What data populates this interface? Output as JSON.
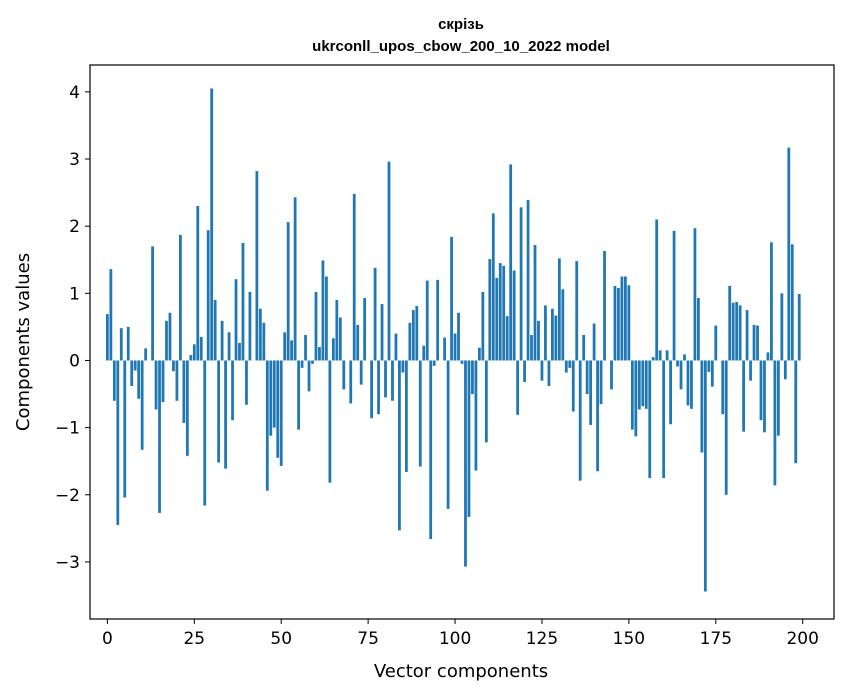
{
  "chart_data": {
    "type": "bar",
    "title": "скрізь",
    "subtitle": "ukrconll_upos_cbow_200_10_2022 model",
    "xlabel": "Vector components",
    "ylabel": "Components values",
    "xlim": [
      -5,
      209
    ],
    "ylim": [
      -3.85,
      4.4
    ],
    "xticks": [
      0,
      25,
      50,
      75,
      100,
      125,
      150,
      175,
      200
    ],
    "yticks": [
      -3,
      -2,
      -1,
      0,
      1,
      2,
      3,
      4
    ],
    "xtick_labels": [
      "0",
      "25",
      "50",
      "75",
      "100",
      "125",
      "150",
      "175",
      "200"
    ],
    "ytick_labels": [
      "−3",
      "−2",
      "−1",
      "0",
      "1",
      "2",
      "3",
      "4"
    ],
    "bar_color": "#1f77b4",
    "grid": false,
    "values": [
      0.69,
      1.36,
      -0.6,
      -2.45,
      0.48,
      -2.04,
      0.5,
      -0.38,
      -0.15,
      -0.57,
      -1.33,
      0.18,
      0.0,
      1.7,
      -0.73,
      -2.27,
      -0.62,
      0.59,
      0.71,
      -0.16,
      -0.6,
      1.87,
      -0.93,
      -1.42,
      0.08,
      0.24,
      2.3,
      0.35,
      -2.16,
      1.94,
      4.05,
      0.9,
      -1.52,
      0.59,
      -1.61,
      0.42,
      -0.89,
      1.21,
      0.26,
      1.75,
      -0.66,
      1.02,
      0.0,
      2.82,
      0.77,
      0.56,
      -1.94,
      -1.12,
      -1.0,
      -1.45,
      -1.57,
      0.42,
      2.06,
      0.3,
      2.43,
      -1.03,
      -0.11,
      0.38,
      -0.46,
      -0.05,
      1.02,
      0.2,
      1.49,
      1.25,
      -1.82,
      0.33,
      0.9,
      0.64,
      -0.43,
      0.0,
      -0.64,
      2.48,
      0.53,
      -0.36,
      0.93,
      0.0,
      -0.86,
      1.38,
      -0.8,
      0.84,
      -0.55,
      2.96,
      -0.6,
      0.4,
      -2.53,
      -0.18,
      -1.66,
      0.56,
      0.75,
      0.81,
      -1.58,
      0.22,
      1.19,
      -2.66,
      -0.08,
      1.2,
      0.0,
      0.34,
      -2.21,
      1.84,
      0.4,
      0.71,
      -0.05,
      -3.07,
      -2.33,
      -0.5,
      -1.64,
      0.19,
      1.02,
      -1.22,
      1.51,
      2.19,
      1.23,
      1.45,
      1.41,
      0.66,
      2.92,
      1.34,
      -0.81,
      2.28,
      -0.32,
      2.39,
      0.38,
      1.72,
      0.59,
      -0.3,
      0.82,
      -0.38,
      0.77,
      0.67,
      1.52,
      1.06,
      -0.18,
      -0.11,
      -0.76,
      1.48,
      -1.79,
      0.38,
      -0.5,
      -0.96,
      0.55,
      -1.65,
      -0.65,
      1.63,
      0.0,
      -0.43,
      1.11,
      1.08,
      1.25,
      1.25,
      1.12,
      -1.03,
      -1.13,
      -0.73,
      -0.68,
      -0.72,
      -1.75,
      0.05,
      2.1,
      0.15,
      -1.75,
      0.15,
      -0.95,
      1.93,
      -0.09,
      -0.43,
      0.09,
      -0.67,
      -0.72,
      1.97,
      0.93,
      -1.37,
      -3.44,
      -0.17,
      -0.39,
      0.52,
      0.0,
      -0.8,
      -2.0,
      1.11,
      0.86,
      0.87,
      0.82,
      -1.06,
      0.75,
      -0.3,
      0.53,
      0.52,
      -0.89,
      -1.07,
      0.12,
      1.76,
      -1.86,
      -1.12,
      1.0,
      -0.28,
      3.17,
      1.73,
      -1.53,
      0.99
    ]
  }
}
